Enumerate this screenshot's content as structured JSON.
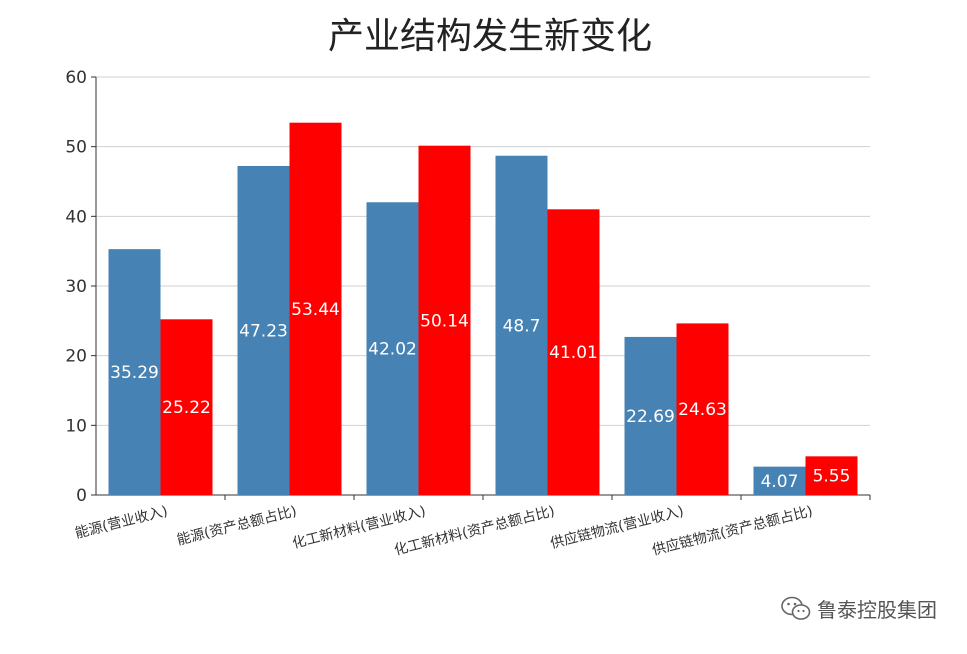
{
  "chart_data": {
    "type": "bar",
    "title": "产业结构发生新变化",
    "categories": [
      "能源(营业收入)",
      "能源(资产总额占比)",
      "化工新材料(营业收入)",
      "化工新材料(资产总额占比)",
      "供应链物流(营业收入)",
      "供应链物流(资产总额占比)"
    ],
    "series": [
      {
        "values": [
          35.29,
          47.23,
          42.02,
          48.7,
          22.69,
          4.07
        ],
        "color": "#4682b4"
      },
      {
        "values": [
          25.22,
          53.44,
          50.14,
          41.01,
          24.63,
          5.55
        ],
        "color": "#ff0000"
      }
    ],
    "ylim": [
      0,
      60
    ],
    "yticks": [
      0,
      10,
      20,
      30,
      40,
      50,
      60
    ],
    "grid": true,
    "legend": "none"
  },
  "watermark": {
    "text": "鲁泰控股集团",
    "icon": "wechat-icon"
  }
}
